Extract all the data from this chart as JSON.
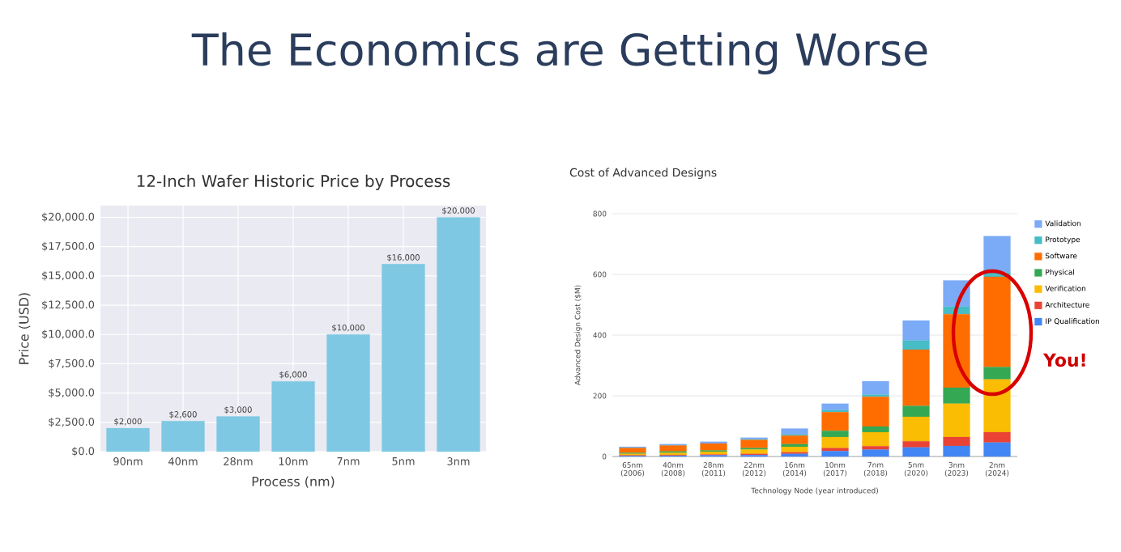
{
  "chart_data": [
    {
      "type": "other",
      "title": "The Economics are Getting Worse"
    },
    {
      "type": "bar",
      "title": "12-Inch Wafer Historic Price by Process",
      "xlabel": "Process (nm)",
      "ylabel": "Price (USD)",
      "categories": [
        "90nm",
        "40nm",
        "28nm",
        "10nm",
        "7nm",
        "5nm",
        "3nm"
      ],
      "values": [
        2000,
        2600,
        3000,
        6000,
        10000,
        16000,
        20000
      ],
      "value_labels": [
        "$2,000",
        "$2,600",
        "$3,000",
        "$6,000",
        "$10,000",
        "$16,000",
        "$20,000"
      ],
      "color": "#7ec8e3",
      "ylim": [
        0,
        21000
      ],
      "yticks": [
        {
          "value": 0,
          "label": "$0.0"
        },
        {
          "value": 2500,
          "label": "$2,500.0"
        },
        {
          "value": 5000,
          "label": "$5,000.0"
        },
        {
          "value": 7500,
          "label": "$7,500.0"
        },
        {
          "value": 10000,
          "label": "$10,000.0"
        },
        {
          "value": 12500,
          "label": "$12,500.0"
        },
        {
          "value": 15000,
          "label": "$15,000.0"
        },
        {
          "value": 17500,
          "label": "$17,500.0"
        },
        {
          "value": 20000,
          "label": "$20,000.0"
        }
      ],
      "grid": true,
      "legend": false
    },
    {
      "type": "bar",
      "title": "Cost of Advanced Designs",
      "xlabel": "Technology Node (year introduced)",
      "ylabel": "Advanced Design Cost ($M)",
      "categories": [
        "65nm (2006)",
        "40nm (2008)",
        "28nm (2011)",
        "22nm (2012)",
        "16nm (2014)",
        "10nm (2017)",
        "7nm (2018)",
        "5nm (2020)",
        "3nm (2023)",
        "2nm (2024)"
      ],
      "stacked": true,
      "series": [
        {
          "name": "IP Qualification",
          "color": "#4285f4",
          "values": [
            2,
            3,
            4,
            5,
            9,
            18,
            23,
            30,
            35,
            46
          ]
        },
        {
          "name": "Architecture",
          "color": "#ea4335",
          "values": [
            2,
            2,
            3,
            4,
            5,
            10,
            11,
            20,
            29,
            34
          ]
        },
        {
          "name": "Verification",
          "color": "#fbbc04",
          "values": [
            5,
            7,
            9,
            14,
            18,
            36,
            46,
            81,
            110,
            174
          ]
        },
        {
          "name": "Physical",
          "color": "#34a853",
          "values": [
            3,
            5,
            4,
            5,
            9,
            21,
            19,
            36,
            53,
            41
          ]
        },
        {
          "name": "Software",
          "color": "#ff6d01",
          "values": [
            16,
            19,
            23,
            27,
            28,
            61,
            98,
            185,
            242,
            297
          ]
        },
        {
          "name": "Prototype",
          "color": "#46bdc6",
          "values": [
            1,
            1,
            null,
            2,
            4,
            7,
            7,
            30,
            25,
            14
          ]
        },
        {
          "name": "Validation",
          "color": "#7baaf7",
          "values": [
            3,
            4,
            6,
            5,
            19,
            21,
            44,
            66,
            86,
            120
          ]
        }
      ],
      "ylim": [
        0,
        800
      ],
      "yticks": [
        0,
        200,
        400,
        600,
        800
      ],
      "grid": "y",
      "legend": "right",
      "annotations": [
        "You!"
      ]
    }
  ]
}
